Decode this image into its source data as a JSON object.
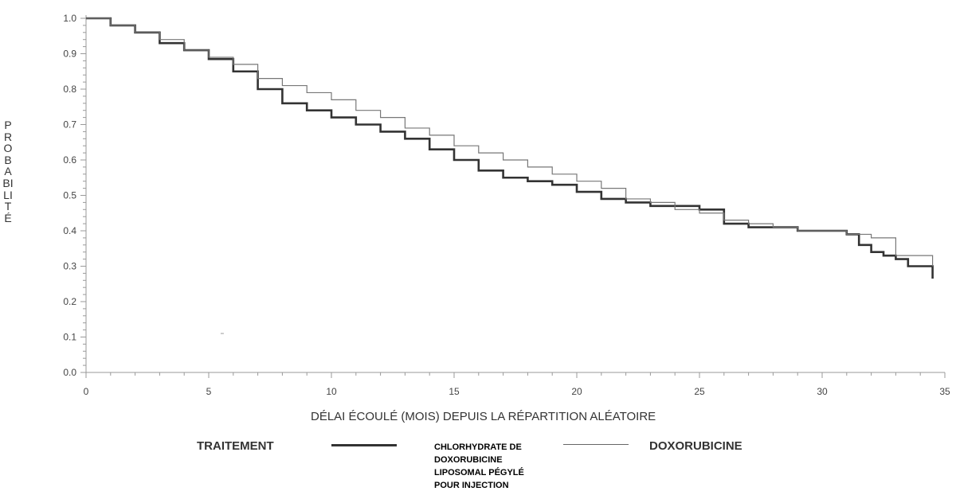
{
  "chart_data": {
    "type": "line",
    "title": "",
    "xlabel": "DÉLAI ÉCOULÉ (MOIS) DEPUIS LA RÉPARTITION ALÉATOIRE",
    "ylabel": "PROBABILITÉ",
    "xlim": [
      0,
      35
    ],
    "ylim": [
      0,
      1
    ],
    "x_ticks": [
      "0",
      "5",
      "10",
      "15",
      "20",
      "25",
      "30",
      "35"
    ],
    "y_ticks": [
      "0.0",
      "0.1",
      "0.2",
      "0.3",
      "0.4",
      "0.5",
      "0.6",
      "0.7",
      "0.8",
      "0.9",
      "1.0"
    ],
    "grid": false,
    "step": true,
    "legend": {
      "title": "TRAITEMENT",
      "placement": "bottom"
    },
    "series": [
      {
        "name": "CHLORHYDRATE DE\nDOXORUBICINE\nLIPOSOMAL PÉGYLÉ\nPOUR INJECTION",
        "color": "#333333",
        "style": "thick",
        "x": [
          0,
          1,
          2,
          3,
          4,
          5,
          6,
          7,
          8,
          9,
          10,
          11,
          12,
          13,
          14,
          15,
          16,
          17,
          18,
          19,
          20,
          21,
          22,
          23,
          24,
          25,
          26,
          27,
          28,
          29,
          30,
          31,
          31.5,
          32,
          32.5,
          33,
          33.5,
          34.5
        ],
        "y": [
          1.0,
          0.98,
          0.96,
          0.93,
          0.91,
          0.885,
          0.85,
          0.8,
          0.76,
          0.74,
          0.72,
          0.7,
          0.68,
          0.66,
          0.63,
          0.6,
          0.57,
          0.55,
          0.54,
          0.53,
          0.51,
          0.49,
          0.48,
          0.47,
          0.47,
          0.46,
          0.42,
          0.41,
          0.41,
          0.4,
          0.4,
          0.39,
          0.36,
          0.34,
          0.33,
          0.32,
          0.3,
          0.265
        ]
      },
      {
        "name": "DOXORUBICINE",
        "color": "#777777",
        "style": "thin",
        "x": [
          0,
          1,
          2,
          3,
          4,
          5,
          6,
          7,
          8,
          9,
          10,
          11,
          12,
          13,
          14,
          15,
          16,
          17,
          18,
          19,
          20,
          21,
          22,
          23,
          24,
          25,
          26,
          27,
          28,
          29,
          30,
          31,
          32,
          32.5,
          33,
          34.5
        ],
        "y": [
          1.0,
          0.98,
          0.96,
          0.94,
          0.91,
          0.89,
          0.87,
          0.83,
          0.81,
          0.79,
          0.77,
          0.74,
          0.72,
          0.69,
          0.67,
          0.64,
          0.62,
          0.6,
          0.58,
          0.56,
          0.54,
          0.52,
          0.49,
          0.48,
          0.46,
          0.45,
          0.43,
          0.42,
          0.41,
          0.4,
          0.4,
          0.39,
          0.38,
          0.38,
          0.33,
          0.3
        ]
      }
    ]
  }
}
